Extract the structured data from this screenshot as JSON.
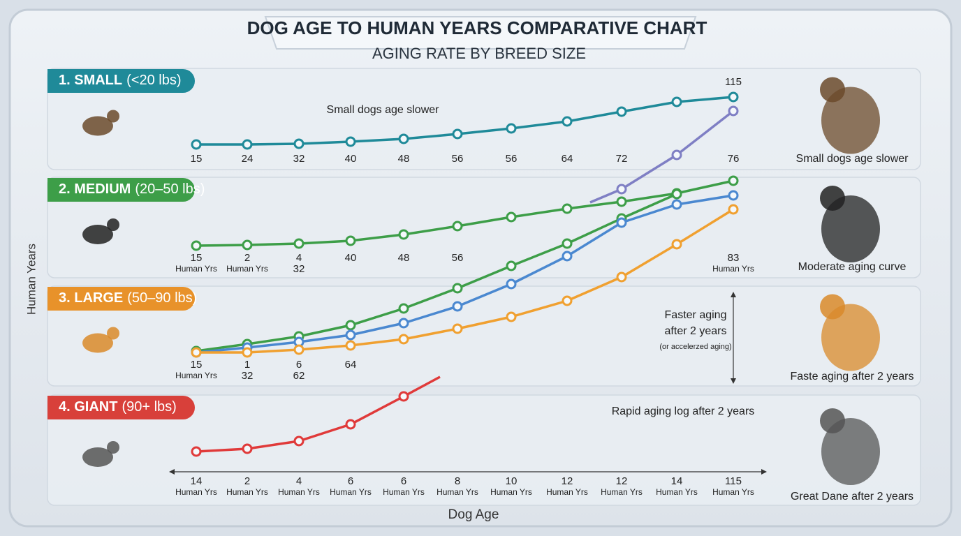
{
  "header": {
    "title": "DOG AGE TO HUMAN YEARS COMPARATIVE CHART",
    "subtitle": "AGING RATE BY BREED SIZE"
  },
  "axes": {
    "y_label": "Human Years",
    "x_label": "Dog Age"
  },
  "panels": [
    {
      "badge": "1. SMALL",
      "range": "(<20 lbs)",
      "note": "Small dogs age slower",
      "caption": "Small dogs age slower",
      "top_label": "115",
      "cells": [
        [
          "15"
        ],
        [
          "24"
        ],
        [
          "32"
        ],
        [
          "40"
        ],
        [
          "48"
        ],
        [
          "56"
        ],
        [
          "56"
        ],
        [
          "64"
        ],
        [
          "72"
        ],
        null,
        [
          "76"
        ]
      ]
    },
    {
      "badge": "2. MEDIUM",
      "range": "(20–50 lbs)",
      "caption": "Moderate aging curve",
      "cells": [
        [
          "15",
          "Human Yrs"
        ],
        [
          "2",
          "Human Yrs"
        ],
        [
          "4",
          "32"
        ],
        [
          "40"
        ],
        [
          "48"
        ],
        [
          "56"
        ],
        null,
        null,
        null,
        null,
        [
          "83",
          "Human Yrs"
        ]
      ]
    },
    {
      "badge": "3. LARGE",
      "range": "(50–90 lbs)",
      "caption": "Faste aging after 2 years",
      "side_note": [
        "Faster aging",
        "after 2 years",
        "(or accelerzed aging)"
      ],
      "cells": [
        [
          "15",
          "Human Yrs"
        ],
        [
          "1",
          "32"
        ],
        [
          "6",
          "62"
        ],
        [
          "64"
        ],
        null,
        null,
        null,
        null,
        null,
        null,
        null
      ]
    },
    {
      "badge": "4. GIANT",
      "range": "(90+ lbs)",
      "note": "Rapid aging log after 2 years",
      "caption": "Great Dane after 2 years",
      "cells": [
        [
          "14",
          "Human Yrs"
        ],
        [
          "2",
          "Human Yrs"
        ],
        [
          "4",
          "Human Yrs"
        ],
        [
          "6",
          "Human Yrs"
        ],
        [
          "6",
          "Human Yrs"
        ],
        [
          "8",
          "Human Yrs"
        ],
        [
          "10",
          "Human Yrs"
        ],
        [
          "12",
          "Human Yrs"
        ],
        [
          "12",
          "Human Yrs"
        ],
        [
          "14",
          "Human Yrs"
        ],
        [
          "115",
          "Human Yrs"
        ]
      ]
    }
  ]
}
